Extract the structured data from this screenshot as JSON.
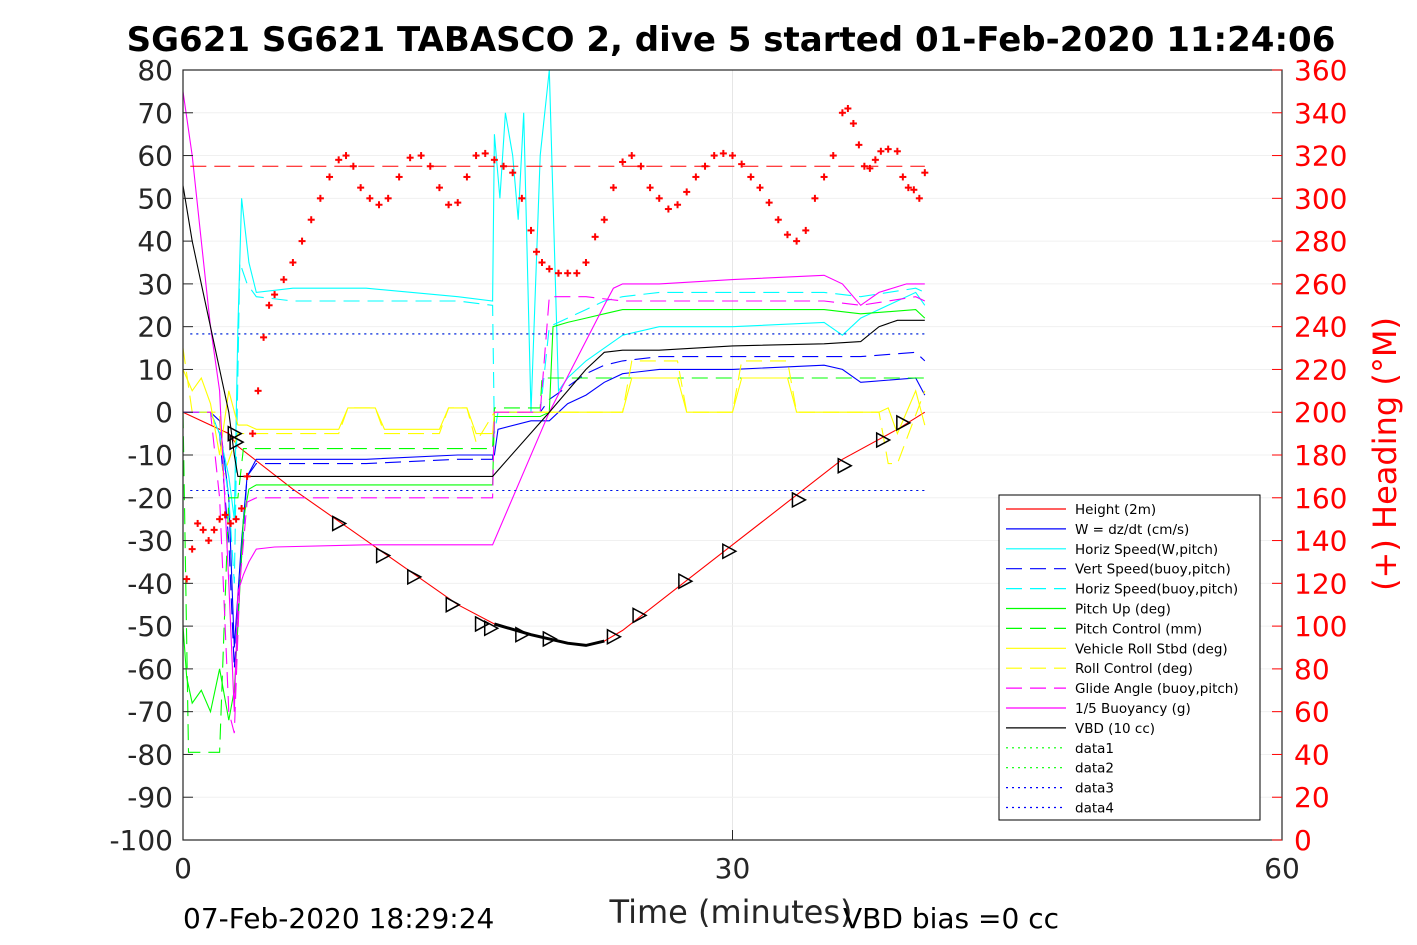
{
  "chart_data": {
    "type": "line",
    "title": "SG621 SG621 TABASCO 2, dive 5 started 01-Feb-2020 11:24:06",
    "xlabel": "Time (minutes)",
    "ylabel_right": "(+) Heading (°M)",
    "xlim": [
      0,
      60
    ],
    "ylim": [
      -100,
      80
    ],
    "ylim_right": [
      0,
      360
    ],
    "x_ticks": [
      "0",
      "30",
      "60"
    ],
    "y_ticks": [
      "80",
      "70",
      "60",
      "50",
      "40",
      "30",
      "20",
      "10",
      "0",
      "-10",
      "-20",
      "-30",
      "-40",
      "-50",
      "-60",
      "-70",
      "-80",
      "-90",
      "-100"
    ],
    "y_ticks_right": [
      "360",
      "340",
      "320",
      "300",
      "280",
      "260",
      "240",
      "220",
      "200",
      "180",
      "160",
      "140",
      "120",
      "100",
      "80",
      "60",
      "40",
      "20",
      "0"
    ],
    "grid": "x only",
    "legend_position": "bottom-right",
    "footer_left": "07-Feb-2020 18:29:24",
    "footer_right": "VBD bias =0 cc",
    "legend": [
      {
        "label": "Height (2m)",
        "color": "#ff0000",
        "style": "solid"
      },
      {
        "label": "W = dz/dt (cm/s)",
        "color": "#0000ff",
        "style": "solid"
      },
      {
        "label": "Horiz Speed(W,pitch)",
        "color": "#00ffff",
        "style": "solid"
      },
      {
        "label": "Vert Speed(buoy,pitch)",
        "color": "#0000ff",
        "style": "dashed"
      },
      {
        "label": "Horiz Speed(buoy,pitch)",
        "color": "#00ffff",
        "style": "dashed"
      },
      {
        "label": "Pitch Up (deg)",
        "color": "#00ff00",
        "style": "solid"
      },
      {
        "label": "Pitch Control (mm)",
        "color": "#00ff00",
        "style": "dashed"
      },
      {
        "label": "Vehicle Roll Stbd (deg)",
        "color": "#ffff00",
        "style": "solid"
      },
      {
        "label": "Roll Control (deg)",
        "color": "#ffff00",
        "style": "dashed"
      },
      {
        "label": "Glide Angle (buoy,pitch)",
        "color": "#ff00ff",
        "style": "dashed"
      },
      {
        "label": "1/5 Buoyancy (g)",
        "color": "#ff00ff",
        "style": "solid"
      },
      {
        "label": "VBD (10 cc)",
        "color": "#000000",
        "style": "solid"
      },
      {
        "label": "data1",
        "color": "#00ff00",
        "style": "dotted"
      },
      {
        "label": "data2",
        "color": "#00ff00",
        "style": "dotted"
      },
      {
        "label": "data3",
        "color": "#0000ff",
        "style": "dotted"
      },
      {
        "label": "data4",
        "color": "#0000ff",
        "style": "dotted"
      }
    ],
    "series": [
      {
        "name": "Height (2m)",
        "color": "#ff0000",
        "style": "solid",
        "axis": "left",
        "x": [
          0,
          2.5,
          3,
          6,
          9,
          12,
          15,
          17,
          19,
          20,
          21,
          22,
          23,
          24,
          27,
          30,
          33,
          36,
          39,
          40.5
        ],
        "y": [
          0,
          -5,
          -8,
          -18,
          -27,
          -36,
          -45,
          -49.5,
          -52,
          -53,
          -54,
          -54.5,
          -53.5,
          -51,
          -41,
          -31,
          -21,
          -11,
          -4,
          0
        ]
      },
      {
        "name": "W = dz/dt (cm/s)",
        "color": "#0000ff",
        "style": "solid",
        "axis": "left",
        "x": [
          0,
          1.5,
          2,
          2.5,
          2.8,
          3.2,
          3.5,
          4,
          6,
          10,
          15,
          17,
          17.2,
          19,
          20,
          21,
          22,
          23,
          24,
          26,
          30,
          35,
          36,
          37,
          40,
          40.5
        ],
        "y": [
          0,
          0,
          -2,
          -20,
          -55,
          -30,
          -15,
          -11,
          -11,
          -11,
          -10,
          -10,
          -4,
          -2,
          -2,
          2,
          4,
          7,
          9,
          10,
          10,
          11,
          10,
          7,
          8,
          4
        ]
      },
      {
        "name": "Horiz Speed(W,pitch)",
        "color": "#00ffff",
        "style": "solid",
        "axis": "left",
        "x": [
          0,
          1.5,
          2,
          2.5,
          2.8,
          3,
          3.2,
          3.6,
          4,
          6,
          10,
          15,
          16.9,
          17,
          17.3,
          17.6,
          18,
          18.3,
          18.6,
          19,
          19.5,
          20,
          20.5,
          21,
          22,
          23,
          24,
          26,
          30,
          35,
          36,
          37,
          40,
          40.5
        ],
        "y": [
          0,
          0,
          -5,
          -15,
          -25,
          20,
          50,
          35,
          28,
          29,
          29,
          27,
          26,
          65,
          50,
          70,
          60,
          45,
          70,
          0,
          60,
          80,
          5,
          8,
          12,
          15,
          18,
          20,
          20,
          21,
          18,
          22,
          28,
          25
        ]
      },
      {
        "name": "Vert Speed(buoy,pitch)",
        "color": "#0000ff",
        "style": "dashed",
        "axis": "left",
        "x": [
          0,
          1.5,
          2,
          2.5,
          2.8,
          3.1,
          3.5,
          4,
          6,
          10,
          15,
          16.9,
          17,
          19.5,
          20,
          21,
          22,
          23,
          24,
          26,
          30,
          35,
          37,
          40,
          40.5
        ],
        "y": [
          0,
          0,
          -5,
          -30,
          -60,
          -40,
          -15,
          -12,
          -12,
          -12,
          -11,
          -11,
          0,
          0,
          3,
          6,
          9,
          11,
          12,
          13,
          13,
          13,
          13,
          14,
          12
        ]
      },
      {
        "name": "Horiz Speed(buoy,pitch)",
        "color": "#00ffff",
        "style": "dashed",
        "axis": "left",
        "x": [
          0,
          1.5,
          2,
          2.5,
          2.8,
          3.1,
          3.5,
          4,
          6,
          10,
          15,
          16.9,
          17,
          17.2,
          19.5,
          20,
          21,
          22,
          23,
          24,
          26,
          30,
          35,
          37,
          40,
          40.5
        ],
        "y": [
          0,
          0,
          -5,
          -20,
          -40,
          35,
          30,
          27,
          26,
          26,
          26,
          25,
          -5,
          0,
          0,
          20,
          22,
          24,
          26,
          27,
          28,
          28,
          28,
          27,
          29,
          28
        ]
      },
      {
        "name": "Pitch Up (deg)",
        "color": "#00ff00",
        "style": "solid",
        "axis": "left",
        "x": [
          0,
          0.2,
          0.5,
          1,
          1.5,
          2,
          2.5,
          2.8,
          3,
          3.3,
          3.6,
          4,
          6,
          10,
          15,
          16.9,
          17,
          19.5,
          20,
          20.2,
          21,
          22,
          23,
          24,
          26,
          30,
          35,
          37,
          40,
          40.5
        ],
        "y": [
          -50,
          -62,
          -68,
          -65,
          -70,
          -60,
          -72,
          -65,
          -50,
          -25,
          -18,
          -17,
          -17,
          -17,
          -17,
          -17,
          -1,
          -1,
          0,
          20,
          21,
          22,
          23,
          24,
          24,
          24,
          24,
          23,
          24,
          22
        ]
      },
      {
        "name": "Pitch Control (mm)",
        "color": "#00ff00",
        "style": "dashed",
        "axis": "left",
        "x": [
          0,
          0.3,
          1.9,
          2,
          2.5,
          3,
          3.3,
          6,
          10,
          15,
          16.9,
          17,
          19.5,
          19.6,
          30,
          35,
          40,
          40.5
        ],
        "y": [
          0,
          -79.5,
          -79.5,
          -79.5,
          -20,
          -20,
          -8.5,
          -8.5,
          -8.5,
          -8.5,
          -8.5,
          1,
          1,
          8,
          8,
          8,
          8,
          8
        ]
      },
      {
        "name": "Vehicle Roll Stbd (deg)",
        "color": "#ffff00",
        "style": "solid",
        "axis": "left",
        "x": [
          0,
          0.5,
          1,
          1.5,
          2,
          2.5,
          3,
          3.5,
          4,
          8.5,
          9,
          10.5,
          11,
          14,
          14.5,
          15.5,
          16,
          16.9,
          17,
          19.5,
          20,
          24,
          24.5,
          27,
          27.5,
          30,
          30.5,
          33,
          33.5,
          35,
          38,
          38.5,
          39,
          40,
          40.5
        ],
        "y": [
          10,
          5,
          8,
          2,
          -10,
          5,
          -3,
          -3,
          -4,
          -4,
          1,
          1,
          -4,
          -4,
          1,
          1,
          -5,
          -5,
          0,
          0,
          0,
          0,
          8,
          8,
          0,
          0,
          8,
          8,
          0,
          0,
          0,
          1,
          -5,
          5,
          -3
        ]
      },
      {
        "name": "Roll Control (deg)",
        "color": "#ffff00",
        "style": "dashed",
        "axis": "left",
        "x": [
          0,
          0.5,
          2,
          2.2,
          3,
          6,
          8.5,
          9,
          10.5,
          11,
          14,
          14.5,
          15.5,
          16,
          17,
          20,
          24,
          24.5,
          27,
          27.5,
          30,
          30.5,
          33,
          33.5,
          38,
          38.5,
          39,
          40.5
        ],
        "y": [
          15,
          0,
          0,
          -15,
          -5,
          -5,
          -5,
          1,
          1,
          -5,
          -5,
          1,
          1,
          -7,
          0,
          0,
          0,
          12,
          12,
          0,
          0,
          12,
          12,
          0,
          0,
          -12,
          -12,
          5
        ]
      },
      {
        "name": "Glide Angle (buoy,pitch)",
        "color": "#ff00ff",
        "style": "dashed",
        "axis": "left",
        "x": [
          0,
          1.5,
          2,
          2.5,
          2.8,
          3.1,
          3.5,
          4,
          6,
          10,
          15,
          16.9,
          17,
          19.5,
          20,
          21,
          22,
          24,
          26,
          30,
          35,
          37,
          40,
          40.5
        ],
        "y": [
          0,
          0,
          -20,
          -70,
          -75,
          -40,
          -21,
          -20,
          -20,
          -20,
          -20,
          -20,
          0,
          0,
          27,
          27,
          27,
          26,
          26,
          26,
          26,
          25,
          27,
          26
        ]
      },
      {
        "name": "1/5 Buoyancy (g)",
        "color": "#ff00ff",
        "style": "solid",
        "axis": "left",
        "x": [
          0,
          0.5,
          1,
          1.5,
          2,
          2.5,
          2.8,
          3,
          3.3,
          3.6,
          4,
          5,
          10,
          15,
          16.9,
          20,
          23,
          23.5,
          24,
          26,
          30,
          35,
          36,
          37,
          38,
          39.5,
          40.5
        ],
        "y": [
          75,
          60,
          40,
          20,
          5,
          -40,
          -70,
          -42,
          -38,
          -35,
          -32,
          -31.5,
          -31,
          -31,
          -31,
          0,
          25,
          29,
          30,
          30,
          31,
          32,
          30,
          25,
          28,
          30,
          30
        ]
      },
      {
        "name": "VBD (10 cc)",
        "color": "#000000",
        "style": "solid",
        "axis": "left",
        "x": [
          0,
          0.5,
          1,
          1.5,
          2,
          2.5,
          2.8,
          3,
          6,
          10,
          15,
          16.9,
          20,
          22,
          23,
          24,
          26,
          30,
          35,
          37,
          38,
          39,
          40.5
        ],
        "y": [
          53,
          40,
          30,
          20,
          10,
          0,
          -10,
          -15,
          -15,
          -15,
          -15,
          -15,
          0,
          10,
          14,
          14.5,
          14.5,
          15.5,
          16,
          16.5,
          20,
          21.5,
          21.5
        ]
      },
      {
        "name": "data1",
        "color": "#00ff00",
        "style": "dotted",
        "axis": "left",
        "x": [
          0.4,
          40.5
        ],
        "y": [
          18.3,
          18.3
        ]
      },
      {
        "name": "data2",
        "color": "#00ff00",
        "style": "dotted",
        "axis": "left",
        "x": [
          0.4,
          40.5
        ],
        "y": [
          -18.3,
          -18.3
        ]
      },
      {
        "name": "data3",
        "color": "#0000ff",
        "style": "dotted",
        "axis": "left",
        "x": [
          0.4,
          40.5
        ],
        "y": [
          18.3,
          18.3
        ]
      },
      {
        "name": "data4",
        "color": "#0000ff",
        "style": "dotted",
        "axis": "left",
        "x": [
          0.4,
          40.5
        ],
        "y": [
          -18.3,
          -18.3
        ]
      }
    ],
    "target_heading": {
      "color": "#ff0000",
      "style": "dashed",
      "axis": "right",
      "x": [
        0.4,
        40.5
      ],
      "y": 315
    },
    "heading_points": {
      "color": "#ff0000",
      "marker": "+",
      "axis": "right",
      "x": [
        0.2,
        0.5,
        0.8,
        1.1,
        1.4,
        1.7,
        2,
        2.3,
        2.6,
        2.9,
        3.2,
        3.5,
        3.8,
        4.1,
        4.4,
        4.7,
        5,
        5.5,
        6,
        6.5,
        7,
        7.5,
        8,
        8.5,
        8.9,
        9.3,
        9.7,
        10.2,
        10.7,
        11.2,
        11.8,
        12.4,
        13,
        13.5,
        14,
        14.5,
        15,
        15.5,
        16,
        16.5,
        17,
        17.5,
        18,
        18.5,
        19,
        19.3,
        19.6,
        20,
        20.5,
        21,
        21.5,
        22,
        22.5,
        23,
        23.5,
        24,
        24.5,
        25,
        25.5,
        26,
        26.5,
        27,
        27.5,
        28,
        28.5,
        29,
        29.5,
        30,
        30.5,
        31,
        31.5,
        32,
        32.5,
        33,
        33.5,
        34,
        34.5,
        35,
        35.5,
        36,
        36.3,
        36.6,
        36.9,
        37.2,
        37.5,
        37.8,
        38.1,
        38.5,
        39,
        39.3,
        39.6,
        39.9,
        40.2,
        40.5
      ],
      "y": [
        122,
        136,
        148,
        145,
        140,
        145,
        150,
        152,
        148,
        150,
        155,
        170,
        190,
        210,
        235,
        250,
        255,
        262,
        270,
        280,
        290,
        300,
        310,
        318,
        320,
        315,
        305,
        300,
        297,
        300,
        310,
        319,
        320,
        315,
        305,
        297,
        298,
        310,
        320,
        321,
        318,
        315,
        312,
        300,
        285,
        275,
        270,
        267,
        265,
        265,
        265,
        270,
        282,
        290,
        305,
        317,
        320,
        315,
        305,
        300,
        295,
        297,
        303,
        310,
        315,
        320,
        321,
        320,
        316,
        310,
        305,
        298,
        290,
        283,
        280,
        285,
        300,
        310,
        320,
        340,
        342,
        335,
        325,
        315,
        314,
        318,
        322,
        323,
        322,
        310,
        305,
        304,
        300,
        312
      ]
    },
    "triangle_markers": {
      "color": "#000000",
      "marker": "triangle",
      "axis": "left",
      "x": [
        2.8,
        2.9,
        8.5,
        10.9,
        12.6,
        14.7,
        16.3,
        16.8,
        18.5,
        20,
        23.5,
        24.9,
        27.4,
        29.8,
        33.6,
        36.1,
        38.2,
        39.3
      ],
      "y": [
        -5,
        -7,
        -26,
        -33.5,
        -38.5,
        -45,
        -49.5,
        -50.5,
        -52,
        -53,
        -52.5,
        -47.5,
        -39.5,
        -32.5,
        -20.5,
        -12.5,
        -6.5,
        -2.5
      ]
    }
  }
}
